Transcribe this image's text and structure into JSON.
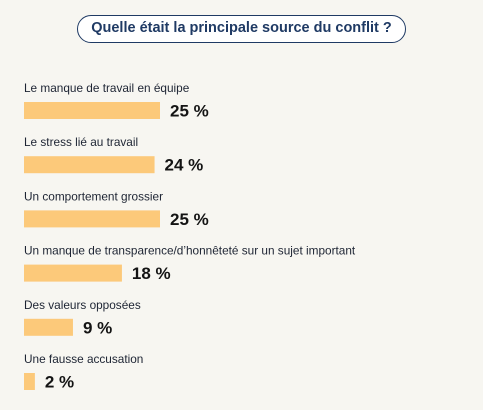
{
  "chart_data": {
    "type": "bar",
    "orientation": "horizontal",
    "title": "Quelle était la principale source du conflit ?",
    "categories": [
      "Le manque de travail en équipe",
      "Le stress lié au travail",
      "Un comportement grossier",
      "Un manque de transparence/d’honnêteté sur un sujet important",
      "Des valeurs opposées",
      "Une fausse accusation"
    ],
    "values": [
      25,
      24,
      25,
      18,
      9,
      2
    ],
    "value_labels": [
      "25 %",
      "24 %",
      "25 %",
      "18 %",
      "9 %",
      "2 %"
    ],
    "xlim": [
      0,
      100
    ],
    "grid": false,
    "legend": "none",
    "bar_color": "#fcc97a"
  }
}
